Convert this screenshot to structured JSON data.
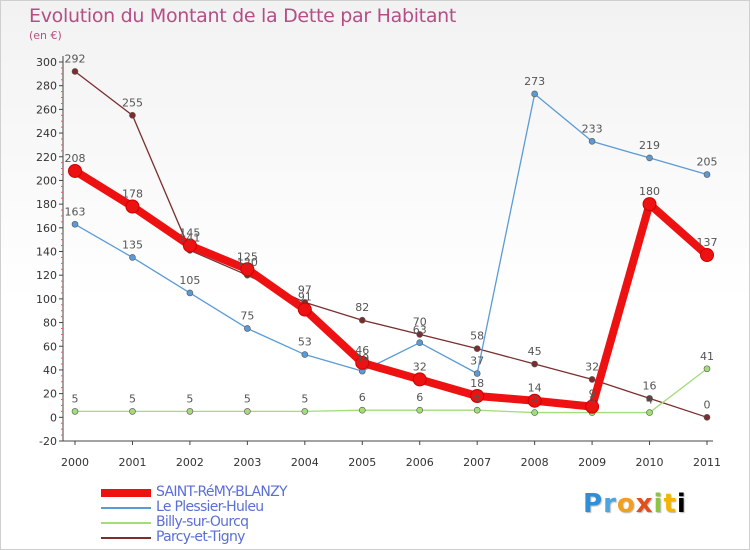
{
  "title": "Evolution du Montant de la Dette par Habitant",
  "unit": "(en €)",
  "logo": [
    "P",
    "r",
    "o",
    "x",
    "i",
    "t",
    "i"
  ],
  "chart_data": {
    "type": "line",
    "x": [
      "2000",
      "2001",
      "2002",
      "2003",
      "2004",
      "2005",
      "2006",
      "2007",
      "2008",
      "2009",
      "2010",
      "2011"
    ],
    "ylim": [
      -20,
      300
    ],
    "yticks": [
      -20,
      0,
      20,
      40,
      60,
      80,
      100,
      120,
      140,
      160,
      180,
      200,
      220,
      240,
      260,
      280,
      300
    ],
    "grid": false,
    "legend_position": "bottom-left",
    "series": [
      {
        "name": "SAINT-RéMY-BLANZY",
        "color": "#ee1111",
        "values": [
          208,
          178,
          145,
          125,
          91,
          46,
          32,
          18,
          14,
          9,
          180,
          137
        ],
        "labels": [
          "208",
          "178",
          "145",
          "125",
          "91",
          "46",
          "32",
          "18",
          "14",
          "9",
          "180",
          "137"
        ]
      },
      {
        "name": "Le Plessier-Huleu",
        "color": "#5b9bd5",
        "values": [
          163,
          135,
          105,
          75,
          53,
          39,
          63,
          37,
          273,
          233,
          219,
          205
        ],
        "labels": [
          "163",
          "135",
          "105",
          "75",
          "53",
          "39",
          "63",
          "37",
          "273",
          "233",
          "219",
          "205"
        ]
      },
      {
        "name": "Billy-sur-Ourcq",
        "color": "#a3dc7a",
        "values": [
          5,
          5,
          5,
          5,
          5,
          6,
          6,
          6,
          4,
          4,
          4,
          41
        ],
        "labels": [
          "5",
          "5",
          "5",
          "5",
          "5",
          "6",
          "6",
          "6",
          "4",
          "4",
          "4",
          "41"
        ]
      },
      {
        "name": "Parcy-et-Tigny",
        "color": "#7b2e2e",
        "values": [
          292,
          255,
          141,
          120,
          97,
          82,
          70,
          58,
          45,
          32,
          16,
          0
        ],
        "labels": [
          "292",
          "255",
          "141",
          "120",
          "97",
          "82",
          "70",
          "58",
          "45",
          "32",
          "16",
          "0"
        ]
      }
    ]
  }
}
